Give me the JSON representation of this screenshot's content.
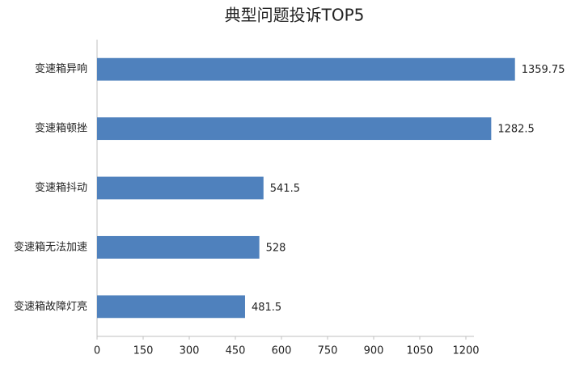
{
  "chart_data": {
    "type": "barh",
    "title": "典型问题投诉TOP5",
    "categories": [
      "变速箱异响",
      "变速箱顿挫",
      "变速箱抖动",
      "变速箱无法加速",
      "变速箱故障灯亮"
    ],
    "values": [
      1359.75,
      1282.5,
      541.5,
      528,
      481.5
    ],
    "color": "#4f81bd",
    "xlim": [
      0,
      1500
    ],
    "xticks": [
      0,
      150,
      300,
      450,
      600,
      750,
      900,
      1050,
      1200
    ],
    "grid": false
  }
}
